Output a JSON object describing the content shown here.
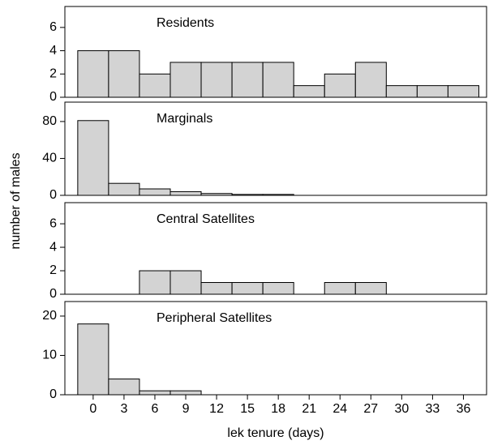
{
  "chart_data": [
    {
      "type": "histogram",
      "title": "Residents",
      "ylabel": "number of males",
      "color": "#d3d3d3",
      "bins": [
        -1.5,
        1.5,
        4.5,
        7.5,
        10.5,
        13.5,
        16.5,
        19.5,
        22.5,
        25.5,
        28.5,
        31.5,
        34.5,
        37.5
      ],
      "counts": [
        4,
        4,
        2,
        3,
        3,
        3,
        3,
        1,
        2,
        3,
        1,
        1,
        1
      ],
      "xlim": [
        -2.75,
        38.25
      ],
      "ylim": [
        0,
        7.8
      ],
      "yticks": [
        0,
        2,
        4,
        6
      ]
    },
    {
      "type": "histogram",
      "title": "Marginals",
      "color": "#d3d3d3",
      "bins": [
        -1.5,
        1.5,
        4.5,
        7.5,
        10.5,
        13.5,
        16.5,
        19.5
      ],
      "counts": [
        81,
        13,
        7,
        4,
        2,
        1,
        1
      ],
      "xlim": [
        -2.75,
        38.25
      ],
      "ylim": [
        0,
        101
      ],
      "yticks": [
        0,
        40,
        80
      ]
    },
    {
      "type": "histogram",
      "title": "Central Satellites",
      "color": "#d3d3d3",
      "bins": [
        -1.5,
        1.5,
        4.5,
        7.5,
        10.5,
        13.5,
        16.5,
        19.5,
        22.5,
        25.5,
        28.5
      ],
      "counts": [
        0,
        0,
        2,
        2,
        1,
        1,
        1,
        0,
        1,
        1
      ],
      "xlim": [
        -2.75,
        38.25
      ],
      "ylim": [
        0,
        7.8
      ],
      "yticks": [
        0,
        2,
        4,
        6
      ]
    },
    {
      "type": "histogram",
      "title": "Peripheral Satellites",
      "xlabel": "lek tenure (days)",
      "color": "#d3d3d3",
      "bins": [
        -1.5,
        1.5,
        4.5,
        7.5,
        10.5
      ],
      "counts": [
        18,
        4,
        1,
        1
      ],
      "xlim": [
        -2.75,
        38.25
      ],
      "ylim": [
        0,
        23.7
      ],
      "yticks": [
        0,
        10,
        20
      ],
      "xticks": [
        0,
        3,
        6,
        9,
        12,
        15,
        18,
        21,
        24,
        27,
        30,
        33,
        36
      ]
    }
  ]
}
